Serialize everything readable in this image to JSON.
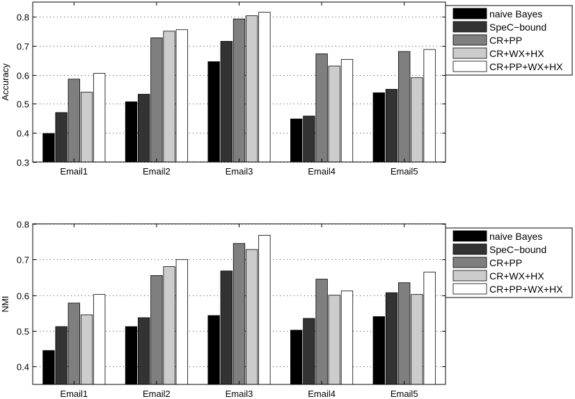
{
  "chart_data": [
    {
      "type": "bar",
      "title": "",
      "xlabel": "",
      "ylabel": "Accuracy",
      "ylim": [
        0.3,
        0.85
      ],
      "yticks": [
        "0.3",
        "0.4",
        "0.5",
        "0.6",
        "0.7",
        "0.8"
      ],
      "grid": "horizontal-dotted",
      "legend_position": "outside-right",
      "categories": [
        "Email1",
        "Email2",
        "Email3",
        "Email4",
        "Email5"
      ],
      "series": [
        {
          "name": "naive Bayes",
          "color": "#000000",
          "values": [
            0.398,
            0.507,
            0.645,
            0.448,
            0.538
          ]
        },
        {
          "name": "SpeC−bound",
          "color": "#333333",
          "values": [
            0.47,
            0.533,
            0.715,
            0.458,
            0.55
          ]
        },
        {
          "name": "CR+PP",
          "color": "#7f7f7f",
          "values": [
            0.585,
            0.727,
            0.792,
            0.672,
            0.68
          ]
        },
        {
          "name": "CR+WX+HX",
          "color": "#cccccc",
          "values": [
            0.54,
            0.75,
            0.803,
            0.63,
            0.59
          ]
        },
        {
          "name": "CR+PP+WX+HX",
          "color": "#ffffff",
          "values": [
            0.605,
            0.755,
            0.815,
            0.653,
            0.687
          ]
        }
      ]
    },
    {
      "type": "bar",
      "title": "",
      "xlabel": "",
      "ylabel": "NMI",
      "ylim": [
        0.35,
        0.8
      ],
      "yticks": [
        "0.4",
        "0.5",
        "0.6",
        "0.7",
        "0.8"
      ],
      "grid": "horizontal-dotted",
      "legend_position": "outside-right",
      "categories": [
        "Email1",
        "Email2",
        "Email3",
        "Email4",
        "Email5"
      ],
      "series": [
        {
          "name": "naive Bayes",
          "color": "#000000",
          "values": [
            0.445,
            0.512,
            0.543,
            0.502,
            0.54
          ]
        },
        {
          "name": "SpeC−bound",
          "color": "#333333",
          "values": [
            0.512,
            0.537,
            0.668,
            0.535,
            0.607
          ]
        },
        {
          "name": "CR+PP",
          "color": "#7f7f7f",
          "values": [
            0.578,
            0.655,
            0.745,
            0.645,
            0.635
          ]
        },
        {
          "name": "CR+WX+HX",
          "color": "#cccccc",
          "values": [
            0.545,
            0.68,
            0.728,
            0.6,
            0.602
          ]
        },
        {
          "name": "CR+PP+WX+HX",
          "color": "#ffffff",
          "values": [
            0.602,
            0.7,
            0.768,
            0.612,
            0.665
          ]
        }
      ]
    }
  ]
}
